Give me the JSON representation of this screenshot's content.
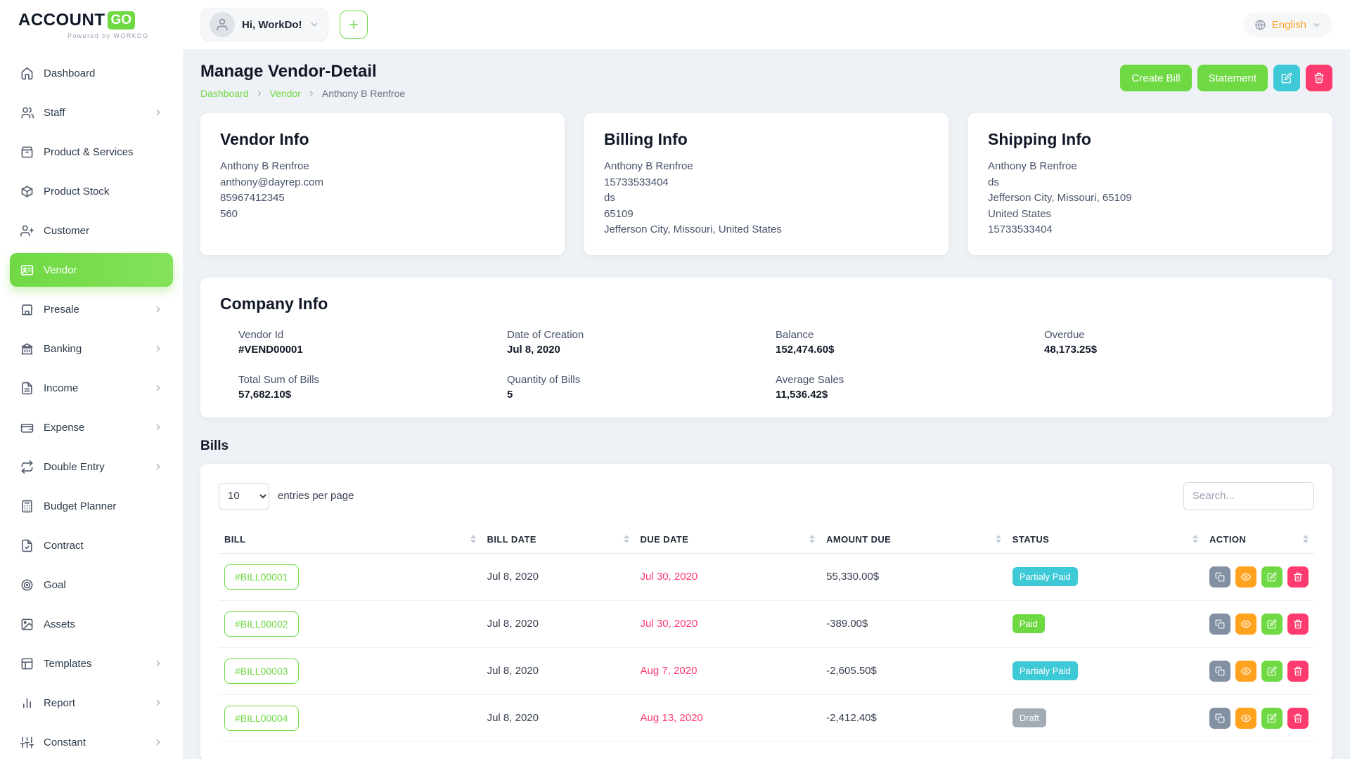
{
  "colors": {
    "primary": "#6fd943",
    "info": "#3ec9d6",
    "danger": "#ff3a6e",
    "warning": "#ffa21d",
    "secondary": "#8290a1"
  },
  "header": {
    "logo": {
      "part1": "ACCOUNT",
      "part2": "GO",
      "tagline": "Powered by WORKDO"
    },
    "greeting": "Hi, WorkDo!",
    "language": "English"
  },
  "sidebar": {
    "items": [
      {
        "label": "Dashboard",
        "icon": "home",
        "chevron": false,
        "active": false
      },
      {
        "label": "Staff",
        "icon": "users",
        "chevron": true,
        "active": false
      },
      {
        "label": "Product & Services",
        "icon": "box",
        "chevron": false,
        "active": false
      },
      {
        "label": "Product Stock",
        "icon": "cube",
        "chevron": false,
        "active": false
      },
      {
        "label": "Customer",
        "icon": "user-check",
        "chevron": false,
        "active": false
      },
      {
        "label": "Vendor",
        "icon": "vendor",
        "chevron": false,
        "active": true
      },
      {
        "label": "Presale",
        "icon": "presale",
        "chevron": true,
        "active": false
      },
      {
        "label": "Banking",
        "icon": "bank",
        "chevron": true,
        "active": false
      },
      {
        "label": "Income",
        "icon": "income",
        "chevron": true,
        "active": false
      },
      {
        "label": "Expense",
        "icon": "expense",
        "chevron": true,
        "active": false
      },
      {
        "label": "Double Entry",
        "icon": "repeat",
        "chevron": true,
        "active": false
      },
      {
        "label": "Budget Planner",
        "icon": "calculator",
        "chevron": false,
        "active": false
      },
      {
        "label": "Contract",
        "icon": "contract",
        "chevron": false,
        "active": false
      },
      {
        "label": "Goal",
        "icon": "goal",
        "chevron": false,
        "active": false
      },
      {
        "label": "Assets",
        "icon": "assets",
        "chevron": false,
        "active": false
      },
      {
        "label": "Templates",
        "icon": "templates",
        "chevron": true,
        "active": false
      },
      {
        "label": "Report",
        "icon": "report",
        "chevron": true,
        "active": false
      },
      {
        "label": "Constant",
        "icon": "sliders",
        "chevron": true,
        "active": false
      }
    ]
  },
  "page": {
    "title": "Manage Vendor-Detail",
    "breadcrumb": [
      "Dashboard",
      "Vendor",
      "Anthony B Renfroe"
    ],
    "actions": {
      "create_bill": "Create Bill",
      "statement": "Statement"
    }
  },
  "vendor_info": {
    "title": "Vendor Info",
    "lines": [
      "Anthony B Renfroe",
      "anthony@dayrep.com",
      "85967412345",
      "560"
    ]
  },
  "billing_info": {
    "title": "Billing Info",
    "lines": [
      "Anthony B Renfroe",
      "15733533404",
      "ds",
      "65109",
      "Jefferson City, Missouri, United States"
    ]
  },
  "shipping_info": {
    "title": "Shipping Info",
    "lines": [
      "Anthony B Renfroe",
      "ds",
      "Jefferson City, Missouri, 65109",
      "United States",
      "15733533404"
    ]
  },
  "company_info": {
    "title": "Company Info",
    "fields": [
      {
        "label": "Vendor Id",
        "value": "#VEND00001"
      },
      {
        "label": "Date of Creation",
        "value": "Jul 8, 2020"
      },
      {
        "label": "Balance",
        "value": "152,474.60$"
      },
      {
        "label": "Overdue",
        "value": "48,173.25$"
      },
      {
        "label": "Total Sum of Bills",
        "value": "57,682.10$"
      },
      {
        "label": "Quantity of Bills",
        "value": "5"
      },
      {
        "label": "Average Sales",
        "value": "11,536.42$"
      }
    ]
  },
  "bills": {
    "title": "Bills",
    "entries_per_page": "10",
    "entries_label": "entries per page",
    "search_placeholder": "Search...",
    "columns": [
      "BILL",
      "BILL DATE",
      "DUE DATE",
      "AMOUNT DUE",
      "STATUS",
      "ACTION"
    ],
    "rows": [
      {
        "bill": "#BILL00001",
        "bill_date": "Jul 8, 2020",
        "due_date": "Jul 30, 2020",
        "amount_due": "55,330.00$",
        "status": "Partialy Paid",
        "status_type": "partial"
      },
      {
        "bill": "#BILL00002",
        "bill_date": "Jul 8, 2020",
        "due_date": "Jul 30, 2020",
        "amount_due": "-389.00$",
        "status": "Paid",
        "status_type": "paid"
      },
      {
        "bill": "#BILL00003",
        "bill_date": "Jul 8, 2020",
        "due_date": "Aug 7, 2020",
        "amount_due": "-2,605.50$",
        "status": "Partialy Paid",
        "status_type": "partial"
      },
      {
        "bill": "#BILL00004",
        "bill_date": "Jul 8, 2020",
        "due_date": "Aug 13, 2020",
        "amount_due": "-2,412.40$",
        "status": "Draft",
        "status_type": "draft"
      }
    ]
  }
}
